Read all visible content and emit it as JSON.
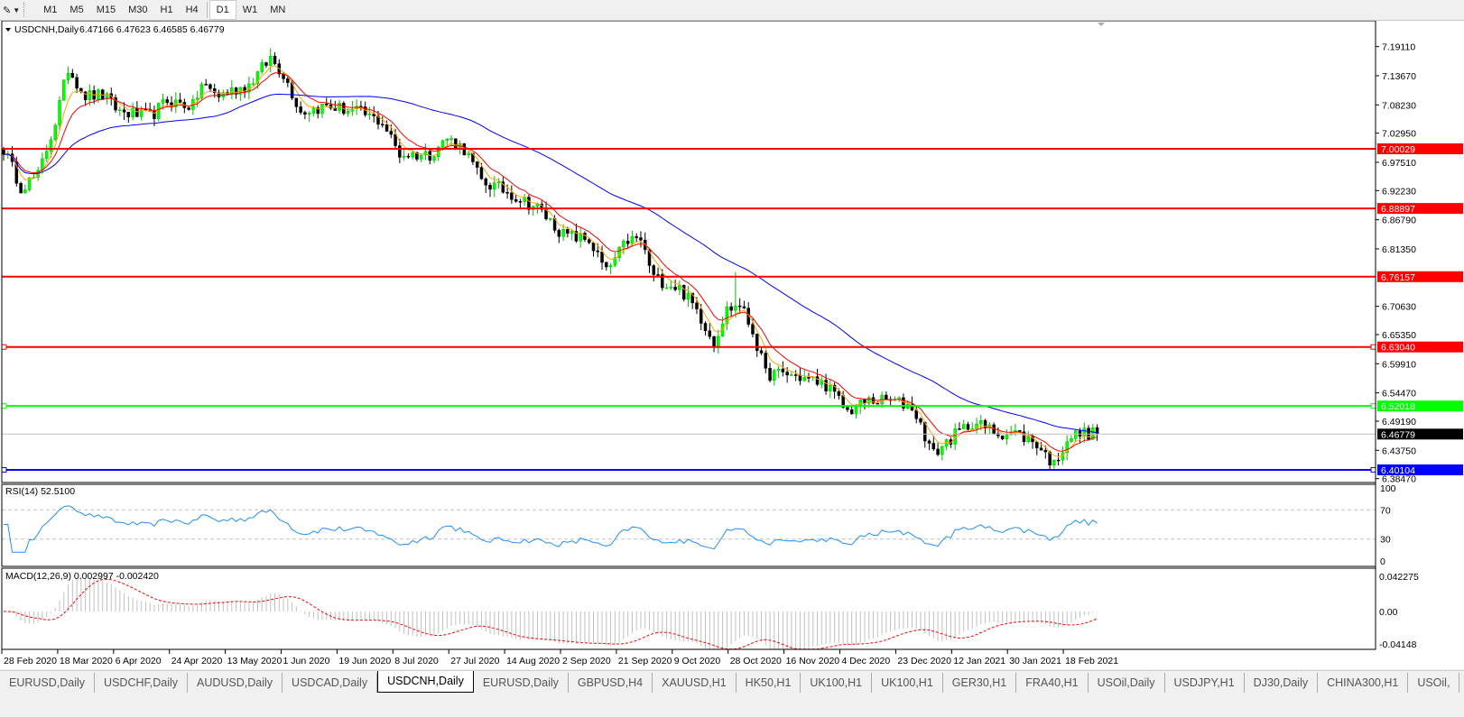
{
  "toolbar": {
    "timeframes": [
      "M1",
      "M5",
      "M15",
      "M30",
      "H1",
      "H4",
      "D1",
      "W1",
      "MN"
    ],
    "active_timeframe": "D1"
  },
  "chart": {
    "title": "USDCNH,Daily",
    "ohlc": "6.47166 6.47623 6.46585 6.46779",
    "price_ticks": [
      "7.19110",
      "7.13670",
      "7.08230",
      "7.02950",
      "6.97510",
      "6.92230",
      "6.86790",
      "6.81350",
      "6.70630",
      "6.65350",
      "6.59910",
      "6.54470",
      "6.49190",
      "6.43750",
      "6.38470"
    ],
    "levels": [
      {
        "price": "7.00029",
        "color": "#ff0000"
      },
      {
        "price": "6.88897",
        "color": "#ff0000"
      },
      {
        "price": "6.76157",
        "color": "#ff0000"
      },
      {
        "price": "6.63040",
        "color": "#ff0000"
      },
      {
        "price": "6.52018",
        "color": "#00ff00"
      },
      {
        "price": "6.40104",
        "color": "#0000ff"
      }
    ],
    "bid": {
      "price": "6.46779",
      "color": "#000000"
    },
    "bull_color": "#00ff00",
    "bear_color": "#000000",
    "ma_fast_color": "#ff0000",
    "ma_slow_color": "#0000ff"
  },
  "rsi": {
    "title": "RSI(14) 52.5100",
    "ticks": [
      "100",
      "70",
      "30",
      "0"
    ],
    "color": "#1e90ff"
  },
  "macd": {
    "title": "MACD(12,26,9) 0.002997 -0.002420",
    "ticks": [
      "0.042275",
      "0.00",
      "-0.04148"
    ],
    "histogram_color": "#c0c0c0",
    "signal_color": "#ff0000"
  },
  "time_axis": [
    "28 Feb 2020",
    "18 Mar 2020",
    "6 Apr 2020",
    "24 Apr 2020",
    "13 May 2020",
    "1 Jun 2020",
    "19 Jun 2020",
    "8 Jul 2020",
    "27 Jul 2020",
    "14 Aug 2020",
    "2 Sep 2020",
    "21 Sep 2020",
    "9 Oct 2020",
    "28 Oct 2020",
    "16 Nov 2020",
    "4 Dec 2020",
    "23 Dec 2020",
    "12 Jan 2021",
    "30 Jan 2021",
    "18 Feb 2021"
  ],
  "chart_data": {
    "type": "candlestick",
    "symbol": "USDCNH",
    "timeframe": "Daily",
    "close_keypoints_bar_price": [
      [
        0,
        7.0
      ],
      [
        4,
        6.93
      ],
      [
        8,
        6.95
      ],
      [
        12,
        7.05
      ],
      [
        15,
        7.15
      ],
      [
        19,
        7.1
      ],
      [
        23,
        7.1
      ],
      [
        27,
        7.07
      ],
      [
        34,
        7.06
      ],
      [
        38,
        7.09
      ],
      [
        44,
        7.08
      ],
      [
        46,
        7.12
      ],
      [
        50,
        7.1
      ],
      [
        57,
        7.12
      ],
      [
        62,
        7.17
      ],
      [
        65,
        7.14
      ],
      [
        69,
        7.07
      ],
      [
        75,
        7.08
      ],
      [
        82,
        7.07
      ],
      [
        88,
        7.05
      ],
      [
        92,
        6.99
      ],
      [
        99,
        6.99
      ],
      [
        103,
        7.02
      ],
      [
        107,
        7.0
      ],
      [
        111,
        6.94
      ],
      [
        117,
        6.92
      ],
      [
        124,
        6.89
      ],
      [
        130,
        6.84
      ],
      [
        136,
        6.83
      ],
      [
        140,
        6.77
      ],
      [
        145,
        6.83
      ],
      [
        148,
        6.83
      ],
      [
        151,
        6.76
      ],
      [
        157,
        6.74
      ],
      [
        161,
        6.7
      ],
      [
        165,
        6.64
      ],
      [
        168,
        6.7
      ],
      [
        171,
        6.71
      ],
      [
        174,
        6.66
      ],
      [
        177,
        6.58
      ],
      [
        182,
        6.58
      ],
      [
        187,
        6.57
      ],
      [
        191,
        6.56
      ],
      [
        196,
        6.51
      ],
      [
        201,
        6.53
      ],
      [
        206,
        6.53
      ],
      [
        211,
        6.52
      ],
      [
        216,
        6.43
      ],
      [
        220,
        6.46
      ],
      [
        225,
        6.49
      ],
      [
        231,
        6.47
      ],
      [
        235,
        6.47
      ],
      [
        240,
        6.45
      ],
      [
        244,
        6.41
      ],
      [
        247,
        6.46
      ],
      [
        251,
        6.47
      ],
      [
        254,
        6.46779
      ]
    ],
    "price_range": [
      6.3847,
      7.1911
    ],
    "rsi_range": [
      0,
      100
    ],
    "rsi_levels": [
      70,
      30
    ],
    "macd_range": [
      -0.04148,
      0.042275
    ]
  },
  "tabs": [
    "EURUSD,Daily",
    "USDCHF,Daily",
    "AUDUSD,Daily",
    "USDCAD,Daily",
    "USDCNH,Daily",
    "EURUSD,Daily",
    "GBPUSD,H4",
    "XAUUSD,H1",
    "HK50,H1",
    "UK100,H1",
    "UK100,H1",
    "GER30,H1",
    "FRA40,H1",
    "USOil,Daily",
    "USDJPY,H1",
    "DJ30,Daily",
    "CHINA300,H1",
    "USOil,"
  ],
  "active_tab": "USDCNH,Daily"
}
